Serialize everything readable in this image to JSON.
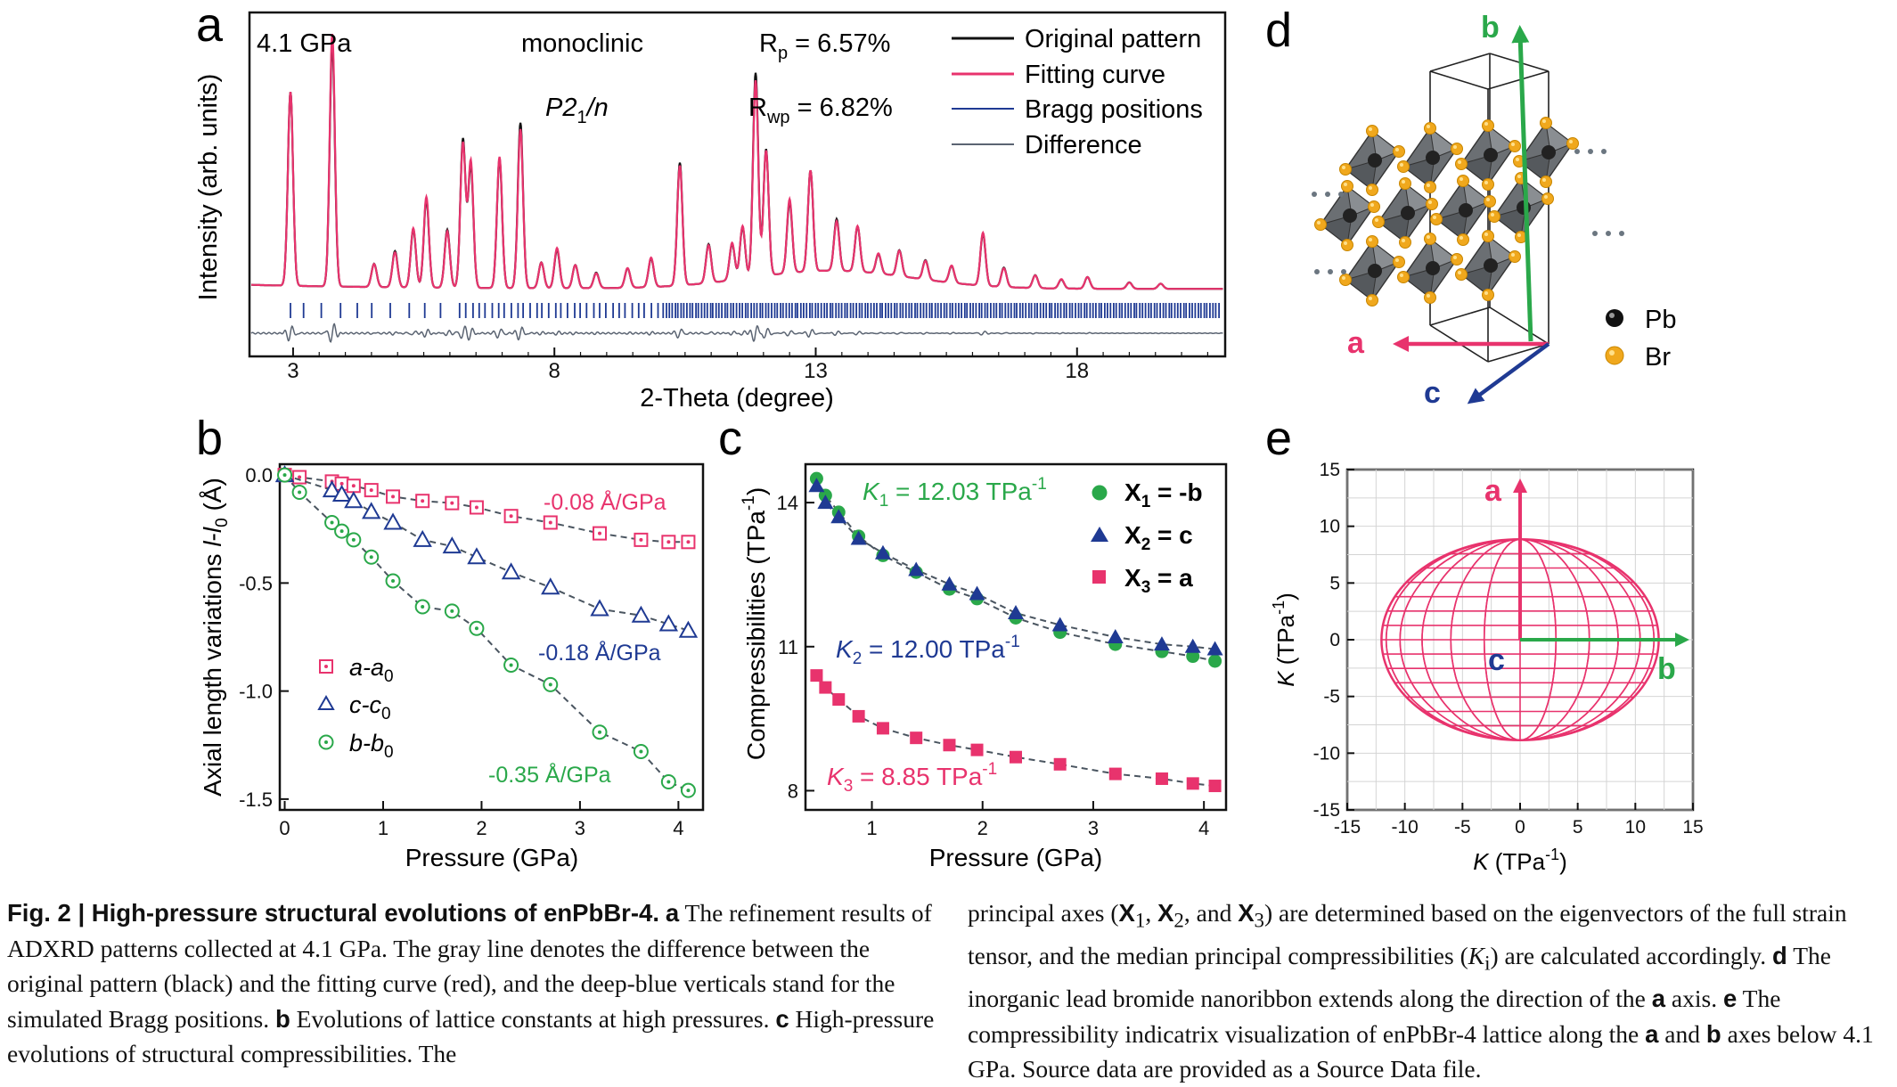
{
  "panels": {
    "a": {
      "letter": "a",
      "pressure": "4.1 GPa",
      "phase": "monoclinic",
      "space_group": "P2",
      "space_group_sub": "1",
      "space_group_suffix": "/n",
      "rp_label": "R",
      "rp_sub": "p",
      "rp_value": " = 6.57%",
      "rwp_label": "R",
      "rwp_sub": "wp",
      "rwp_value": " = 6.82%",
      "legend": [
        "Original pattern",
        "Fitting curve",
        "Bragg positions",
        "Difference"
      ],
      "xlabel": "2-Theta (degree)",
      "ylabel": "Intensity (arb. units)",
      "xticks": [
        "3",
        "8",
        "13",
        "18"
      ]
    },
    "b": {
      "letter": "b",
      "xlabel": "Pressure (GPa)",
      "ylabel_main": "Axial length variations ",
      "ylabel_l": "l",
      "ylabel_dash": "-",
      "ylabel_l0": "l",
      "ylabel_sub": "0",
      "ylabel_unit": " (Å)",
      "xticks": [
        "0",
        "1",
        "2",
        "3",
        "4"
      ],
      "yticks": [
        "0.0",
        "-0.5",
        "-1.0",
        "-1.5"
      ],
      "slope_a": "-0.08 Å/GPa",
      "slope_c": "-0.18 Å/GPa",
      "slope_b": "-0.35 Å/GPa",
      "legend": [
        {
          "main": "a-a",
          "sub": "0"
        },
        {
          "main": "c-c",
          "sub": "0"
        },
        {
          "main": "b-b",
          "sub": "0"
        }
      ]
    },
    "c": {
      "letter": "c",
      "xlabel": "Pressure (GPa)",
      "ylabel_main": "Compressibilities (TPa",
      "ylabel_sup": "-1",
      "ylabel_end": ")",
      "xticks": [
        "1",
        "2",
        "3",
        "4"
      ],
      "yticks": [
        "8",
        "11",
        "14"
      ],
      "k1": {
        "k": "K",
        "sub": "1",
        "value": " = 12.03 TPa",
        "sup": "-1"
      },
      "k2": {
        "k": "K",
        "sub": "2",
        "value": " = 12.00 TPa",
        "sup": "-1"
      },
      "k3": {
        "k": "K",
        "sub": "3",
        "value": " = 8.85 TPa",
        "sup": "-1"
      },
      "legend": [
        {
          "x": "X",
          "sub": "1",
          "rest": " = -b"
        },
        {
          "x": "X",
          "sub": "2",
          "rest": " = c"
        },
        {
          "x": "X",
          "sub": "3",
          "rest": " = a"
        }
      ]
    },
    "d": {
      "letter": "d",
      "axis_a": "a",
      "axis_b": "b",
      "axis_c": "c",
      "legend": [
        "Pb",
        "Br"
      ]
    },
    "e": {
      "letter": "e",
      "xlabel_k": "K",
      "xlabel_unit": " (TPa",
      "xlabel_sup": "-1",
      "xlabel_end": ")",
      "ylabel_k": "K",
      "ylabel_unit": " (TPa",
      "ylabel_sup": "-1",
      "ylabel_end": ")",
      "ticks": [
        "-15",
        "-10",
        "-5",
        "0",
        "5",
        "10",
        "15"
      ],
      "axis_a": "a",
      "axis_b": "b",
      "axis_c": "c"
    }
  },
  "chart_data": [
    {
      "panel": "a",
      "type": "line",
      "xlim": [
        2.2,
        20.8
      ],
      "xlabel": "2-Theta (degree)",
      "ylabel": "Intensity (arb. units)",
      "peaks": [
        {
          "x": 2.95,
          "h": 150
        },
        {
          "x": 3.75,
          "h": 188
        },
        {
          "x": 4.55,
          "h": 18
        },
        {
          "x": 4.95,
          "h": 28
        },
        {
          "x": 5.3,
          "h": 45
        },
        {
          "x": 5.55,
          "h": 68
        },
        {
          "x": 5.95,
          "h": 45
        },
        {
          "x": 6.25,
          "h": 115
        },
        {
          "x": 6.4,
          "h": 95
        },
        {
          "x": 6.95,
          "h": 100
        },
        {
          "x": 7.35,
          "h": 128
        },
        {
          "x": 7.75,
          "h": 20
        },
        {
          "x": 8.05,
          "h": 30
        },
        {
          "x": 8.4,
          "h": 18
        },
        {
          "x": 8.8,
          "h": 12
        },
        {
          "x": 9.4,
          "h": 15
        },
        {
          "x": 9.85,
          "h": 22
        },
        {
          "x": 10.4,
          "h": 95
        },
        {
          "x": 10.95,
          "h": 30
        },
        {
          "x": 11.4,
          "h": 28
        },
        {
          "x": 11.6,
          "h": 40
        },
        {
          "x": 11.85,
          "h": 158
        },
        {
          "x": 12.05,
          "h": 98
        },
        {
          "x": 12.5,
          "h": 55
        },
        {
          "x": 12.9,
          "h": 78
        },
        {
          "x": 13.4,
          "h": 40
        },
        {
          "x": 13.8,
          "h": 35
        },
        {
          "x": 14.2,
          "h": 15
        },
        {
          "x": 14.6,
          "h": 20
        },
        {
          "x": 15.1,
          "h": 15
        },
        {
          "x": 15.6,
          "h": 13
        },
        {
          "x": 16.2,
          "h": 40
        },
        {
          "x": 16.6,
          "h": 15
        },
        {
          "x": 17.2,
          "h": 10
        },
        {
          "x": 17.7,
          "h": 7
        },
        {
          "x": 18.2,
          "h": 9
        },
        {
          "x": 19.0,
          "h": 5
        },
        {
          "x": 19.6,
          "h": 4
        }
      ],
      "bragg_from": 2.95,
      "bragg_to": 20.75
    },
    {
      "panel": "b",
      "type": "scatter",
      "xlim": [
        -0.05,
        4.25
      ],
      "ylim": [
        -1.55,
        0.05
      ],
      "xlabel": "Pressure (GPa)",
      "ylabel": "Axial length variations l-l0 (Å)",
      "series": [
        {
          "name": "a-a0",
          "marker": "square-dot",
          "color": "#e8336d",
          "x": [
            0,
            0.15,
            0.48,
            0.58,
            0.7,
            0.88,
            1.1,
            1.4,
            1.7,
            1.95,
            2.3,
            2.7,
            3.2,
            3.62,
            3.9,
            4.1
          ],
          "y": [
            0,
            -0.01,
            -0.03,
            -0.04,
            -0.05,
            -0.07,
            -0.1,
            -0.12,
            -0.13,
            -0.15,
            -0.19,
            -0.22,
            -0.27,
            -0.3,
            -0.31,
            -0.31
          ]
        },
        {
          "name": "c-c0",
          "marker": "triangle-open",
          "color": "#1f3a93",
          "x": [
            0,
            0.48,
            0.58,
            0.7,
            0.88,
            1.1,
            1.4,
            1.7,
            1.95,
            2.3,
            2.7,
            3.2,
            3.62,
            3.9,
            4.1
          ],
          "y": [
            0,
            -0.07,
            -0.09,
            -0.12,
            -0.17,
            -0.22,
            -0.3,
            -0.33,
            -0.38,
            -0.45,
            -0.52,
            -0.62,
            -0.65,
            -0.69,
            -0.72
          ]
        },
        {
          "name": "b-b0",
          "marker": "circle-dot",
          "color": "#2aa84a",
          "x": [
            0,
            0.15,
            0.48,
            0.58,
            0.7,
            0.88,
            1.1,
            1.4,
            1.7,
            1.95,
            2.3,
            2.7,
            3.2,
            3.62,
            3.9,
            4.1
          ],
          "y": [
            0,
            -0.08,
            -0.22,
            -0.26,
            -0.3,
            -0.38,
            -0.49,
            -0.61,
            -0.63,
            -0.71,
            -0.88,
            -0.97,
            -1.19,
            -1.28,
            -1.42,
            -1.46
          ]
        }
      ]
    },
    {
      "panel": "c",
      "type": "scatter",
      "xlim": [
        0.4,
        4.2
      ],
      "ylim": [
        7.6,
        14.8
      ],
      "xlabel": "Pressure (GPa)",
      "ylabel": "Compressibilities (TPa-1)",
      "series": [
        {
          "name": "X1 = -b",
          "marker": "circle",
          "color": "#2aa84a",
          "x": [
            0.5,
            0.58,
            0.7,
            0.88,
            1.1,
            1.4,
            1.7,
            1.95,
            2.3,
            2.7,
            3.2,
            3.62,
            3.9,
            4.1
          ],
          "y": [
            14.5,
            14.15,
            13.8,
            13.3,
            12.9,
            12.55,
            12.2,
            12.0,
            11.6,
            11.3,
            11.05,
            10.9,
            10.8,
            10.7
          ]
        },
        {
          "name": "X2 = c",
          "marker": "triangle",
          "color": "#1f3a93",
          "x": [
            0.5,
            0.58,
            0.7,
            0.88,
            1.1,
            1.4,
            1.7,
            1.95,
            2.3,
            2.7,
            3.2,
            3.62,
            3.9,
            4.1
          ],
          "y": [
            14.35,
            14.0,
            13.7,
            13.25,
            12.95,
            12.6,
            12.3,
            12.1,
            11.7,
            11.45,
            11.2,
            11.05,
            11.0,
            10.95
          ]
        },
        {
          "name": "X3 = a",
          "marker": "square",
          "color": "#e8336d",
          "x": [
            0.5,
            0.58,
            0.7,
            0.88,
            1.1,
            1.4,
            1.7,
            1.95,
            2.3,
            2.7,
            3.2,
            3.62,
            3.9,
            4.1
          ],
          "y": [
            10.4,
            10.15,
            9.9,
            9.55,
            9.3,
            9.1,
            8.95,
            8.85,
            8.7,
            8.55,
            8.35,
            8.25,
            8.15,
            8.1
          ]
        }
      ]
    },
    {
      "panel": "e",
      "type": "indicatrix",
      "xlim": [
        -15,
        15
      ],
      "ylim": [
        -15,
        15
      ],
      "semi_axis_b": 12.03,
      "semi_axis_a": 8.85,
      "xlabel": "K (TPa-1)",
      "ylabel": "K (TPa-1)"
    }
  ],
  "caption": {
    "fig_label": "Fig. 2 | High-pressure structural evolutions of enPbBr-4.",
    "left": [
      {
        "t": "text",
        "v": " "
      },
      {
        "t": "bold",
        "v": "a"
      },
      {
        "t": "text",
        "v": " The refinement results of ADXRD patterns collected at 4.1 GPa. The gray line denotes the difference between the original pattern (black) and the fitting curve (red), and the deep-blue verticals stand for the simulated Bragg positions. "
      },
      {
        "t": "bold",
        "v": "b"
      },
      {
        "t": "text",
        "v": " Evolutions of lattice constants at high pressures. "
      },
      {
        "t": "bold",
        "v": "c"
      },
      {
        "t": "text",
        "v": " High-pressure evolutions of structural compressibilities. The"
      }
    ],
    "right": [
      {
        "t": "text",
        "v": "principal axes ("
      },
      {
        "t": "bold",
        "v": "X"
      },
      {
        "t": "sub",
        "v": "1"
      },
      {
        "t": "text",
        "v": ", "
      },
      {
        "t": "bold",
        "v": "X"
      },
      {
        "t": "sub",
        "v": "2"
      },
      {
        "t": "text",
        "v": ", and "
      },
      {
        "t": "bold",
        "v": "X"
      },
      {
        "t": "sub",
        "v": "3"
      },
      {
        "t": "text",
        "v": ") are determined based on the eigenvectors of the full strain tensor, and the median principal compressibilities ("
      },
      {
        "t": "ital",
        "v": "K"
      },
      {
        "t": "sub",
        "v": "i"
      },
      {
        "t": "text",
        "v": ") are calculated accordingly. "
      },
      {
        "t": "bold",
        "v": "d"
      },
      {
        "t": "text",
        "v": " The inorganic lead bromide nanoribbon extends along the direction of the "
      },
      {
        "t": "bold",
        "v": "a"
      },
      {
        "t": "text",
        "v": " axis. "
      },
      {
        "t": "bold",
        "v": "e"
      },
      {
        "t": "text",
        "v": " The compressibility indicatrix visualization of enPbBr-4 lattice along the "
      },
      {
        "t": "bold",
        "v": "a"
      },
      {
        "t": "text",
        "v": " and "
      },
      {
        "t": "bold",
        "v": "b"
      },
      {
        "t": "text",
        "v": " axes below 4.1 GPa. Source data are provided as a Source Data file."
      }
    ]
  }
}
